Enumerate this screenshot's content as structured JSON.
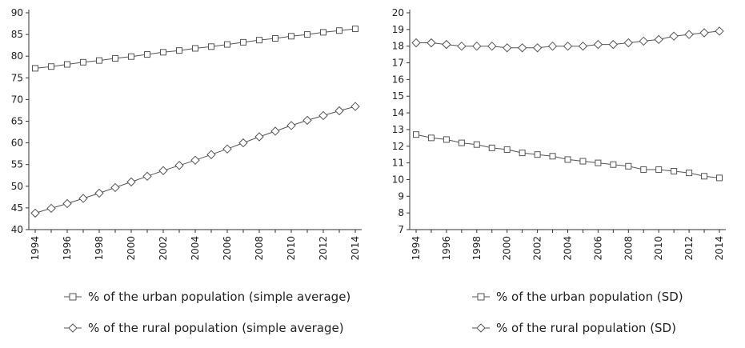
{
  "chart_data": [
    {
      "type": "line",
      "title": "",
      "xlabel": "",
      "ylabel": "",
      "ylim": [
        40,
        90
      ],
      "yticks": [
        40,
        45,
        50,
        55,
        60,
        65,
        70,
        75,
        80,
        85,
        90
      ],
      "xtick_labels": [
        "1994",
        "1996",
        "1998",
        "2000",
        "2002",
        "2004",
        "2006",
        "2008",
        "2010",
        "2012",
        "2014"
      ],
      "x": [
        1994,
        1995,
        1996,
        1997,
        1998,
        1999,
        2000,
        2001,
        2002,
        2003,
        2004,
        2005,
        2006,
        2007,
        2008,
        2009,
        2010,
        2011,
        2012,
        2013,
        2014
      ],
      "series": [
        {
          "name": "% of the urban population (simple average)",
          "marker": "square",
          "values": [
            77.2,
            77.6,
            78.1,
            78.6,
            79.0,
            79.5,
            79.9,
            80.4,
            80.9,
            81.3,
            81.8,
            82.2,
            82.7,
            83.2,
            83.7,
            84.1,
            84.6,
            85.0,
            85.5,
            85.9,
            86.3
          ]
        },
        {
          "name": "% of the rural population (simple average)",
          "marker": "diamond",
          "values": [
            43.8,
            44.9,
            46.0,
            47.2,
            48.4,
            49.7,
            51.0,
            52.3,
            53.6,
            54.8,
            56.0,
            57.3,
            58.6,
            60.0,
            61.4,
            62.7,
            64.0,
            65.2,
            66.3,
            67.4,
            68.4
          ]
        }
      ]
    },
    {
      "type": "line",
      "title": "",
      "xlabel": "",
      "ylabel": "",
      "ylim": [
        7,
        20
      ],
      "yticks": [
        7,
        8,
        9,
        10,
        11,
        12,
        13,
        14,
        15,
        16,
        17,
        18,
        19,
        20
      ],
      "xtick_labels": [
        "1994",
        "1996",
        "1998",
        "2000",
        "2002",
        "2004",
        "2006",
        "2008",
        "2010",
        "2012",
        "2014"
      ],
      "x": [
        1994,
        1995,
        1996,
        1997,
        1998,
        1999,
        2000,
        2001,
        2002,
        2003,
        2004,
        2005,
        2006,
        2007,
        2008,
        2009,
        2010,
        2011,
        2012,
        2013,
        2014
      ],
      "series": [
        {
          "name": "% of the urban population (SD)",
          "marker": "square",
          "values": [
            12.7,
            12.5,
            12.4,
            12.2,
            12.1,
            11.9,
            11.8,
            11.6,
            11.5,
            11.4,
            11.2,
            11.1,
            11.0,
            10.9,
            10.8,
            10.6,
            10.6,
            10.5,
            10.4,
            10.2,
            10.1
          ]
        },
        {
          "name": "% of the rural population (SD)",
          "marker": "diamond",
          "values": [
            18.2,
            18.2,
            18.1,
            18.0,
            18.0,
            18.0,
            17.9,
            17.9,
            17.9,
            18.0,
            18.0,
            18.0,
            18.1,
            18.1,
            18.2,
            18.3,
            18.4,
            18.6,
            18.7,
            18.8,
            18.9
          ]
        }
      ]
    }
  ],
  "style": {
    "line_color": "#555555",
    "marker_fill": "#ffffff",
    "axis_color": "#333333",
    "text_color": "#222222"
  }
}
